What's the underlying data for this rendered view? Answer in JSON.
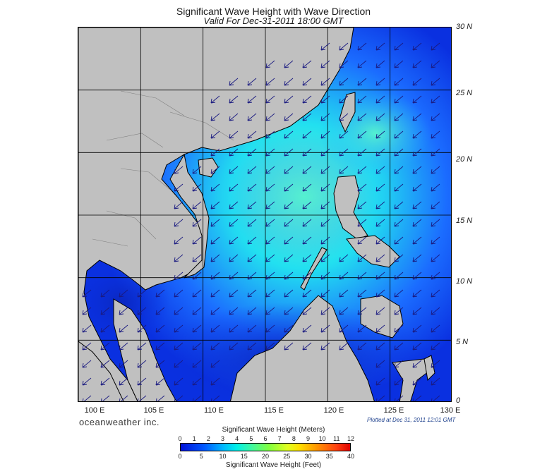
{
  "header": {
    "title": "Significant Wave Height with Wave Direction",
    "subtitle": "Valid For Dec-31-2011 18:00 GMT"
  },
  "map": {
    "lat_labels": [
      "30 N",
      "25 N",
      "20 N",
      "15 N",
      "10 N",
      "5 N",
      "0"
    ],
    "lon_labels": [
      "100 E",
      "105 E",
      "110 E",
      "115 E",
      "120 E",
      "125 E",
      "130 E"
    ],
    "land_color": "#c0c0c0",
    "grid_color": "#000000",
    "arrow_color": "#1a1a80",
    "wave_colors": {
      "calm": "#0a30e0",
      "low": "#1b6cff",
      "mid": "#2aa8ff",
      "high": "#22e0f0",
      "peak": "#6ef0c8"
    }
  },
  "footer": {
    "brand": "oceanweather inc.",
    "plotted": "Plotted at Dec 31, 2011 12:01 GMT"
  },
  "legend": {
    "title_meters": "Significant Wave Height (Meters)",
    "title_feet": "Significant Wave Height (Feet)",
    "meter_ticks": [
      "0",
      "1",
      "2",
      "3",
      "4",
      "5",
      "6",
      "7",
      "8",
      "9",
      "10",
      "11",
      "12"
    ],
    "feet_ticks": [
      "0",
      "5",
      "10",
      "15",
      "20",
      "25",
      "30",
      "35",
      "40"
    ]
  }
}
